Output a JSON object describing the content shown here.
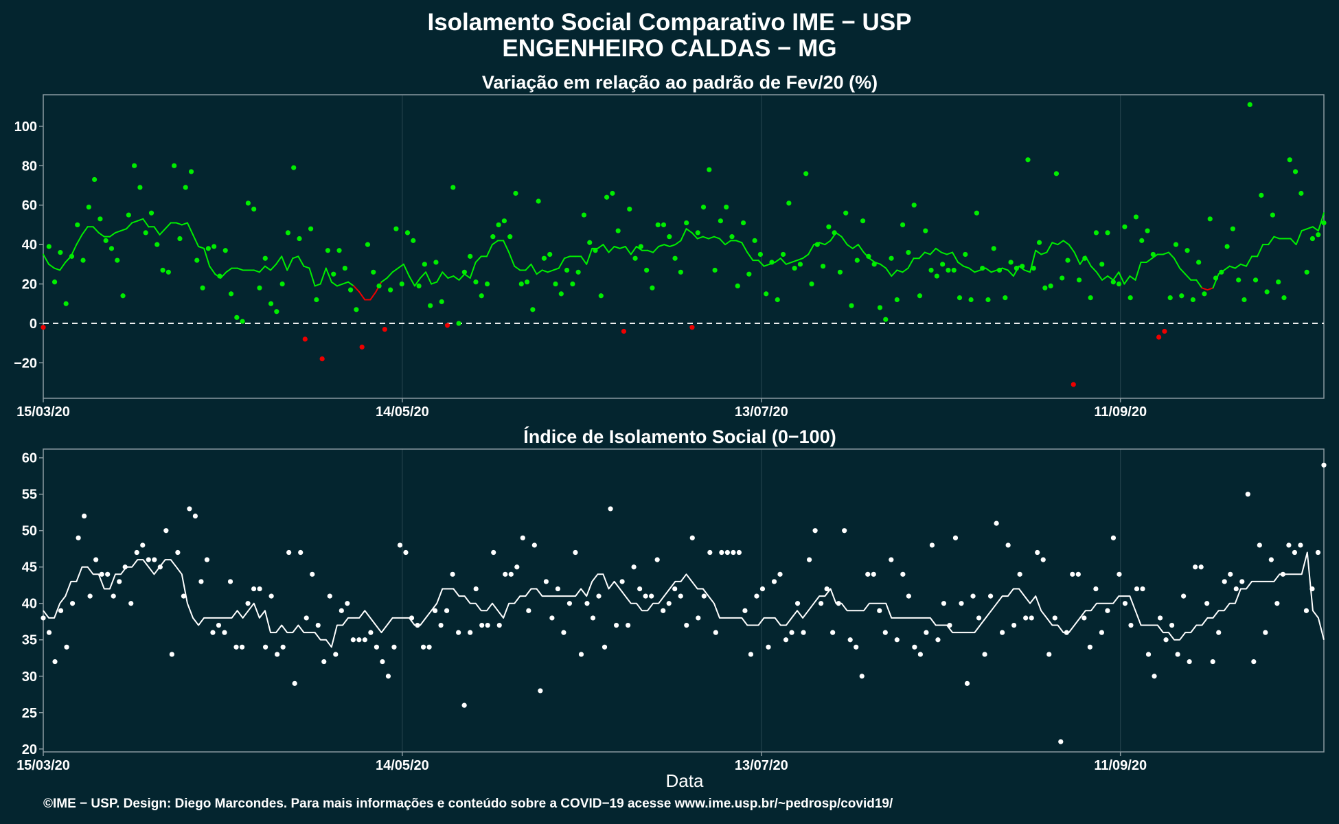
{
  "header": {
    "title": "Isolamento Social Comparativo IME − USP",
    "subtitle": "ENGENHEIRO CALDAS − MG"
  },
  "footer": "©IME − USP. Design: Diego Marcondes. Para mais informações e conteúdo sobre a COVID−19 acesse www.ime.usp.br/~pedrosp/covid19/",
  "colors": {
    "background": "#04252f",
    "positive": "#00ee00",
    "negative": "#ee0000",
    "index": "#ffffff",
    "grid": "#23414b",
    "frame": "#8a9aa0"
  },
  "chart_data": [
    {
      "type": "scatter",
      "title": "Variação em relação ao padrão de Fev/20 (%)",
      "xlabel": "",
      "ylabel": "",
      "x_start": "15/03/20",
      "x_end": "15/10/20",
      "x_ticks": [
        "15/03/20",
        "14/05/20",
        "13/07/20",
        "11/09/20"
      ],
      "y_ticks": [
        -20,
        0,
        20,
        40,
        60,
        80,
        100
      ],
      "ylim": [
        -38,
        116
      ],
      "reference_line": 0,
      "grid": true,
      "series": [
        {
          "values": [
            -2,
            39,
            21,
            36,
            10,
            34,
            50,
            32,
            59,
            73,
            53,
            42,
            38,
            32,
            14,
            55,
            80,
            69,
            46,
            56,
            40,
            27,
            26,
            80,
            43,
            69,
            77,
            32,
            18,
            38,
            39,
            24,
            37,
            15,
            3,
            1,
            61,
            58,
            18,
            33,
            10,
            6,
            20,
            46,
            79,
            43,
            -8,
            48,
            12,
            -18,
            37,
            25,
            37,
            28,
            17,
            7,
            -12,
            40,
            26,
            19,
            -3,
            17,
            48,
            20,
            46,
            42,
            19,
            30,
            9,
            31,
            11,
            -1,
            69,
            0,
            26,
            34,
            21,
            14,
            20,
            44,
            50,
            52,
            44,
            66,
            20,
            21,
            7,
            62,
            33,
            35,
            20,
            15,
            27,
            20,
            26,
            55,
            41,
            37,
            14,
            64,
            66,
            47,
            -4,
            58,
            33,
            39,
            27,
            18,
            50,
            50,
            44,
            33,
            26,
            51,
            -2,
            46,
            59,
            78,
            27,
            52,
            59,
            44,
            19,
            51,
            25,
            42,
            35,
            15,
            31,
            12,
            35,
            61,
            28,
            30,
            76,
            20,
            40,
            29,
            49,
            46,
            26,
            56,
            9,
            32,
            52,
            34,
            30,
            8,
            2,
            33,
            12,
            50,
            36,
            60,
            14,
            47,
            27,
            24,
            30,
            27,
            27,
            13,
            35,
            12,
            56,
            28,
            12,
            38,
            27,
            13,
            31,
            28,
            29,
            83,
            28,
            41,
            18,
            19,
            76,
            23,
            32,
            -31,
            22,
            33,
            13,
            46,
            30,
            46,
            21,
            20,
            49,
            13,
            54,
            42,
            47,
            35,
            -7,
            -4,
            13,
            40,
            14,
            37,
            12,
            31,
            15,
            53,
            23,
            26,
            39,
            48,
            22,
            12,
            111,
            22,
            65,
            16,
            55,
            21,
            13,
            83,
            77,
            66,
            26,
            43,
            45,
            51
          ]
        },
        {
          "values": [
            35,
            30,
            28,
            27,
            31,
            34,
            40,
            45,
            49,
            49,
            46,
            44,
            44,
            46,
            47,
            48,
            51,
            52,
            53,
            49,
            49,
            45,
            48,
            51,
            51,
            50,
            51,
            45,
            39,
            38,
            29,
            25,
            23,
            26,
            28,
            28,
            27,
            27,
            27,
            26,
            29,
            27,
            30,
            34,
            27,
            33,
            34,
            29,
            28,
            19,
            20,
            28,
            21,
            19,
            20,
            21,
            19,
            16,
            12,
            12,
            16,
            21,
            23,
            26,
            28,
            30,
            24,
            19,
            23,
            26,
            20,
            21,
            26,
            23,
            24,
            22,
            25,
            23,
            31,
            34,
            34,
            40,
            42,
            42,
            36,
            29,
            27,
            27,
            30,
            25,
            27,
            26,
            27,
            28,
            33,
            34,
            34,
            34,
            30,
            38,
            38,
            40,
            36,
            39,
            38,
            39,
            35,
            39,
            37,
            37,
            36,
            39,
            40,
            39,
            40,
            42,
            48,
            46,
            43,
            44,
            43,
            44,
            43,
            40,
            42,
            42,
            41,
            36,
            32,
            32,
            29,
            30,
            31,
            33,
            30,
            31,
            32,
            33,
            35,
            40,
            41,
            40,
            42,
            46,
            44,
            40,
            38,
            40,
            36,
            33,
            31,
            30,
            28,
            24,
            27,
            26,
            28,
            33,
            33,
            36,
            35,
            38,
            36,
            35,
            36,
            31,
            29,
            28,
            26,
            27,
            28,
            26,
            27,
            28,
            27,
            24,
            29,
            27,
            26,
            37,
            35,
            36,
            41,
            40,
            42,
            40,
            36,
            30,
            34,
            29,
            26,
            22,
            24,
            22,
            26,
            20,
            24,
            22,
            31,
            31,
            33,
            35,
            35,
            36,
            33,
            28,
            25,
            22,
            22,
            18,
            17,
            18,
            25,
            27,
            29,
            28,
            30,
            29,
            34,
            34,
            40,
            40,
            44,
            43,
            43,
            43,
            40,
            47,
            48,
            49,
            47,
            56
          ]
        }
      ]
    },
    {
      "type": "scatter",
      "title": "Índice de Isolamento Social (0−100)",
      "xlabel": "Data",
      "ylabel": "",
      "x_start": "15/03/20",
      "x_end": "15/10/20",
      "x_ticks": [
        "15/03/20",
        "14/05/20",
        "13/07/20",
        "11/09/20"
      ],
      "y_ticks": [
        20,
        25,
        30,
        35,
        40,
        45,
        50,
        55,
        60
      ],
      "ylim": [
        19.6,
        61.2
      ],
      "grid": true,
      "series": [
        {
          "values": [
            38,
            36,
            32,
            39,
            34,
            40,
            49,
            52,
            41,
            46,
            44,
            44,
            41,
            43,
            45,
            40,
            47,
            48,
            46,
            46,
            45,
            50,
            33,
            47,
            41,
            53,
            52,
            43,
            46,
            36,
            37,
            36,
            43,
            34,
            34,
            40,
            42,
            42,
            34,
            41,
            33,
            34,
            47,
            29,
            47,
            38,
            44,
            37,
            32,
            41,
            33,
            39,
            40,
            35,
            35,
            35,
            36,
            34,
            32,
            30,
            34,
            48,
            47,
            38,
            37,
            34,
            34,
            39,
            37,
            39,
            44,
            36,
            26,
            36,
            42,
            37,
            37,
            47,
            37,
            44,
            44,
            45,
            49,
            39,
            48,
            28,
            43,
            38,
            42,
            36,
            40,
            47,
            33,
            40,
            38,
            41,
            34,
            53,
            37,
            43,
            37,
            45,
            42,
            41,
            41,
            46,
            39,
            40,
            42,
            41,
            37,
            49,
            38,
            41,
            47,
            36,
            47,
            47,
            47,
            47,
            39,
            33,
            41,
            42,
            34,
            43,
            44,
            35,
            36,
            40,
            36,
            46,
            50,
            40,
            42,
            36,
            40,
            50,
            35,
            34,
            30,
            44,
            44,
            39,
            36,
            46,
            35,
            44,
            41,
            34,
            33,
            36,
            48,
            35,
            40,
            37,
            49,
            40,
            29,
            41,
            38,
            33,
            41,
            51,
            36,
            48,
            37,
            44,
            38,
            38,
            47,
            46,
            33,
            38,
            21,
            36,
            44,
            44,
            38,
            34,
            42,
            36,
            39,
            49,
            44,
            40,
            37,
            42,
            42,
            33,
            30,
            38,
            35,
            37,
            33,
            41,
            32,
            45,
            45,
            40,
            32,
            36,
            43,
            44,
            42,
            43,
            55,
            32,
            48,
            36,
            46,
            40,
            44,
            48,
            47,
            48,
            39,
            42,
            47,
            59
          ]
        },
        {
          "values": [
            39,
            38,
            38,
            40,
            41,
            43,
            43,
            45,
            45,
            44,
            44,
            42,
            42,
            44,
            44,
            45,
            45,
            46,
            46,
            45,
            44,
            45,
            46,
            46,
            45,
            44,
            40,
            38,
            37,
            38,
            38,
            38,
            38,
            38,
            38,
            39,
            38,
            39,
            40,
            38,
            39,
            36,
            36,
            37,
            36,
            36,
            37,
            36,
            36,
            36,
            35,
            35,
            34,
            37,
            37,
            38,
            38,
            38,
            39,
            38,
            37,
            36,
            37,
            38,
            38,
            38,
            38,
            37,
            37,
            38,
            39,
            40,
            42,
            42,
            42,
            41,
            41,
            40,
            40,
            39,
            39,
            40,
            39,
            38,
            40,
            40,
            41,
            41,
            42,
            42,
            41,
            41,
            41,
            41,
            41,
            41,
            41,
            42,
            41,
            43,
            44,
            44,
            42,
            43,
            42,
            41,
            40,
            40,
            39,
            39,
            40,
            40,
            41,
            42,
            43,
            43,
            44,
            43,
            42,
            42,
            41,
            40,
            38,
            38,
            38,
            38,
            38,
            37,
            37,
            37,
            38,
            38,
            38,
            37,
            37,
            38,
            39,
            38,
            39,
            40,
            41,
            41,
            42,
            40,
            40,
            39,
            39,
            39,
            39,
            40,
            40,
            40,
            40,
            38,
            38,
            38,
            38,
            38,
            38,
            38,
            38,
            37,
            37,
            37,
            36,
            36,
            36,
            36,
            36,
            37,
            38,
            39,
            40,
            41,
            41,
            42,
            42,
            41,
            40,
            41,
            39,
            38,
            37,
            37,
            36,
            36,
            37,
            38,
            39,
            39,
            40,
            40,
            40,
            40,
            41,
            41,
            41,
            39,
            37,
            37,
            37,
            37,
            36,
            36,
            35,
            35,
            36,
            36,
            37,
            37,
            38,
            38,
            39,
            39,
            40,
            40,
            42,
            42,
            43,
            43,
            43,
            43,
            43,
            44,
            44,
            44,
            44,
            44,
            47,
            39,
            38,
            35
          ]
        }
      ]
    }
  ]
}
